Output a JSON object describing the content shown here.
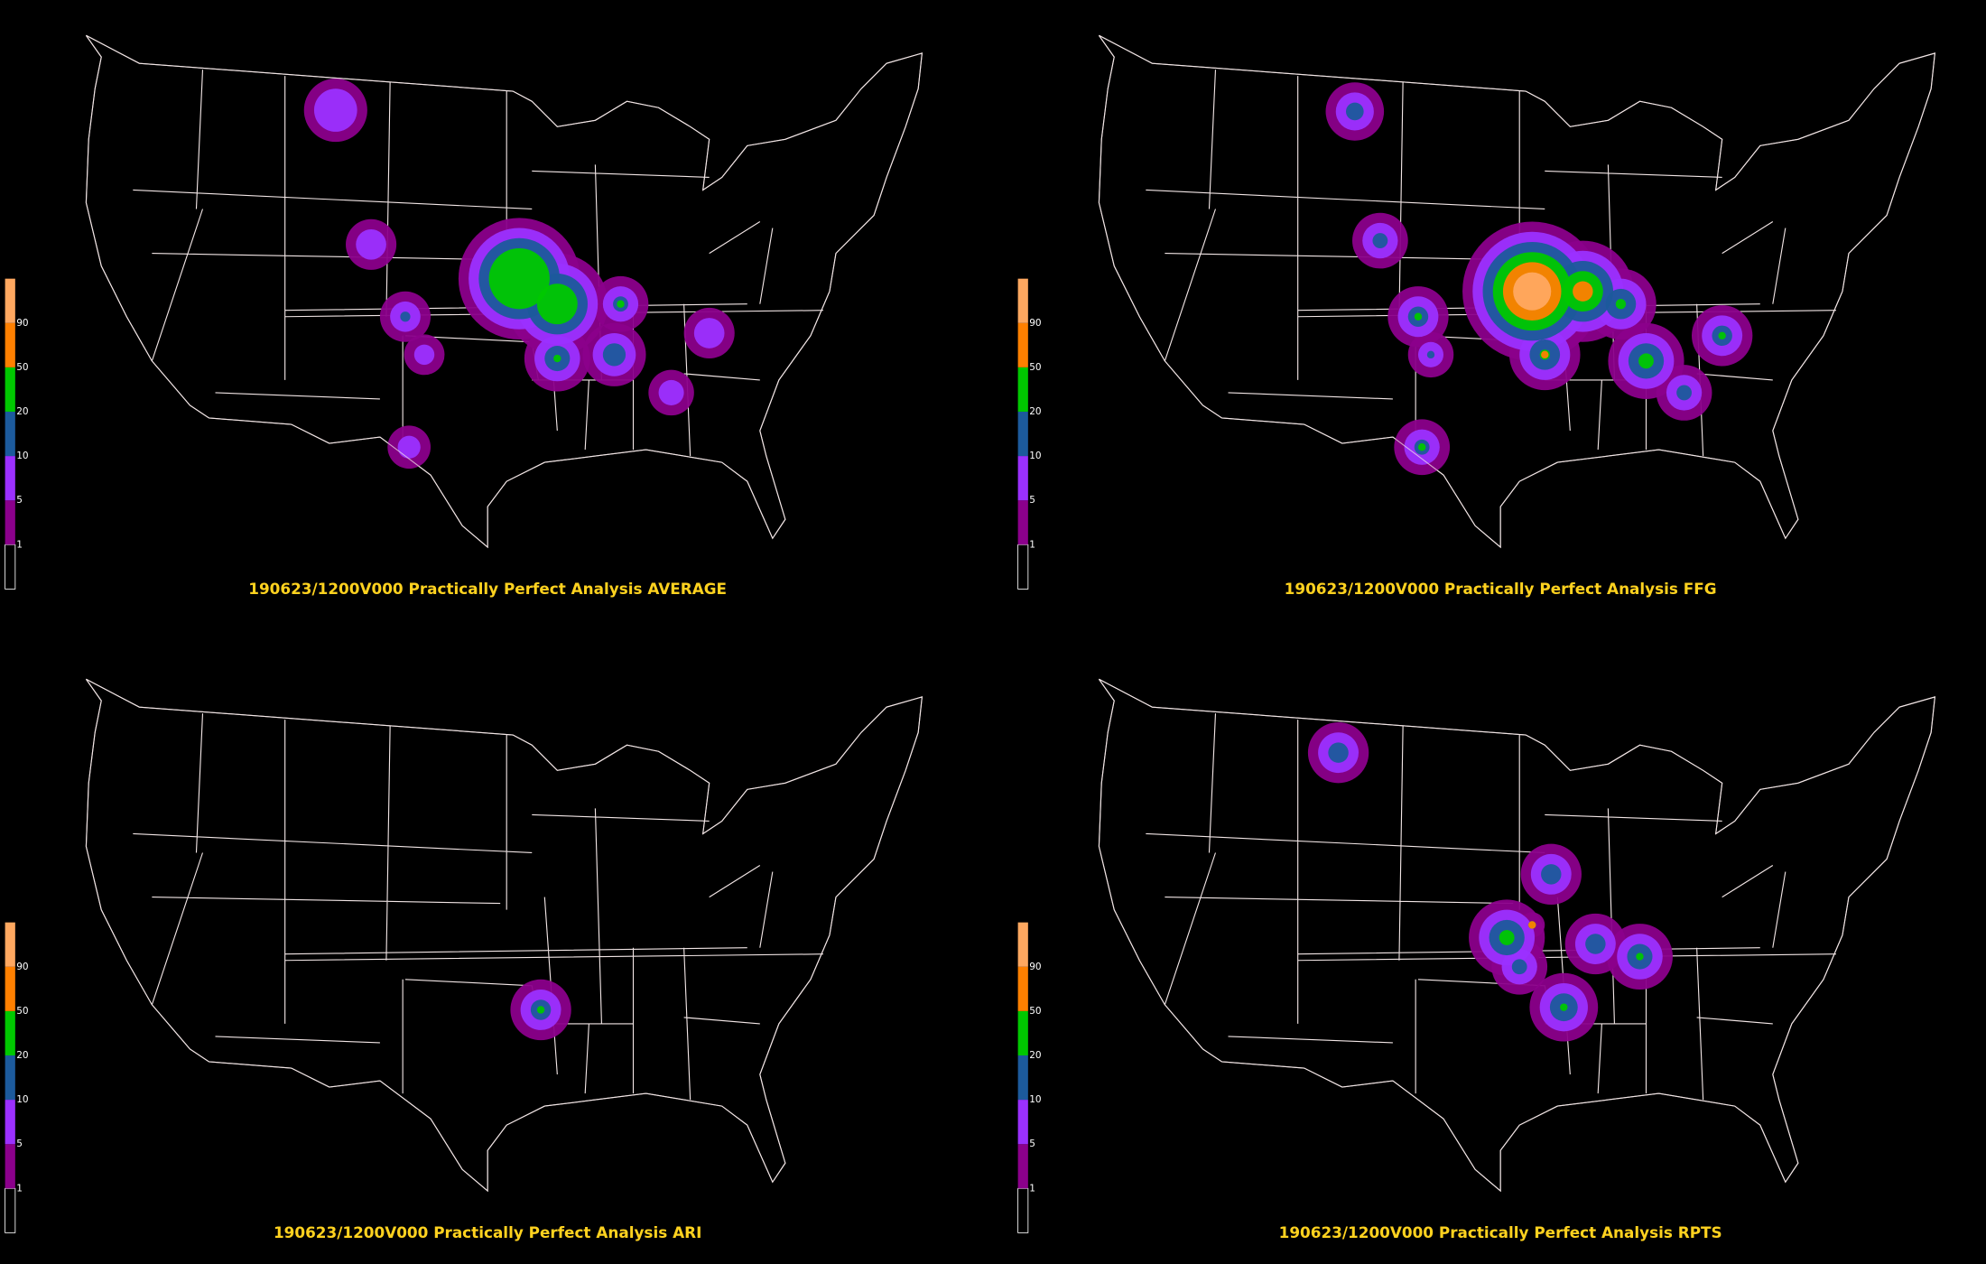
{
  "panels": [
    {
      "title": "190623/1200V000 Practically Perfect Analysis AVERAGE"
    },
    {
      "title": "190623/1200V000 Practically Perfect Analysis FFG"
    },
    {
      "title": "190623/1200V000 Practically Perfect Analysis ARI"
    },
    {
      "title": "190623/1200V000 Practically Perfect Analysis RPTS"
    }
  ],
  "legend": {
    "levels": [
      "1",
      "5",
      "10",
      "20",
      "50",
      "90"
    ]
  }
}
